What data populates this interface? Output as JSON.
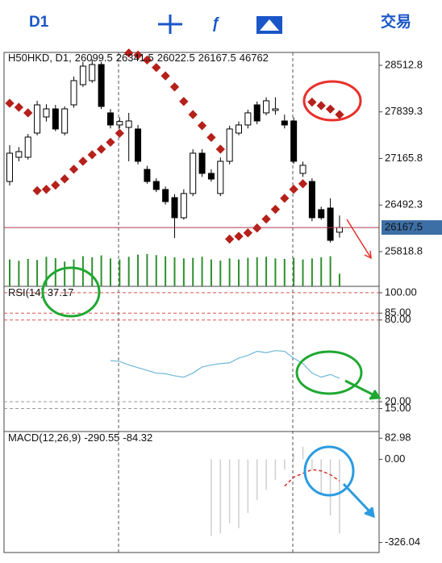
{
  "toolbar": {
    "timeframe": "D1",
    "trade": "交易"
  },
  "chart_data": [
    {
      "type": "candlestick",
      "title": "H50HKD, D1,",
      "open": [
        26833,
        27183,
        27183,
        27533,
        27766,
        27883,
        27533,
        27941,
        28233,
        28291,
        28524,
        27825,
        27650,
        27615,
        27592,
        27008,
        26833,
        26717,
        26600,
        26309,
        26659,
        27242,
        26950,
        26659,
        27125,
        27533,
        27650,
        27941,
        27825,
        27860,
        27708,
        27708,
        26950,
        26833,
        26426,
        26449,
        26099.5
      ],
      "high": [
        27358,
        27330,
        27520,
        28000,
        27950,
        27940,
        27920,
        28350,
        28560,
        28600,
        28560,
        27880,
        27760,
        27825,
        27650,
        27060,
        26880,
        26760,
        26650,
        26720,
        27300,
        27300,
        27010,
        27180,
        27640,
        27700,
        27870,
        27990,
        28050,
        28050,
        27800,
        27760,
        27120,
        26880,
        26470,
        26590,
        26341.5
      ],
      "low": [
        26775,
        27125,
        27150,
        27500,
        27700,
        27560,
        27500,
        27900,
        28200,
        28260,
        27880,
        27600,
        27600,
        27125,
        27080,
        26800,
        26680,
        26500,
        26017,
        26280,
        26620,
        26900,
        26830,
        26620,
        27080,
        27500,
        27600,
        27660,
        27790,
        27800,
        27600,
        27090,
        26900,
        26260,
        26280,
        25950,
        26022.5
      ],
      "close": [
        27242,
        27265,
        27475,
        27941,
        27883,
        27592,
        27883,
        28291,
        28501,
        28524,
        27918,
        27650,
        27700,
        27708,
        27125,
        26833,
        26717,
        26542,
        26309,
        26659,
        27242,
        26950,
        26868,
        27125,
        27592,
        27650,
        27825,
        27708,
        28000,
        27883,
        27650,
        27125,
        27067,
        26309,
        26309,
        25982,
        26167.5
      ],
      "volume": [
        100000,
        95000,
        102000,
        98000,
        110000,
        105000,
        92000,
        100000,
        112000,
        108000,
        115000,
        104000,
        100000,
        110000,
        118000,
        120000,
        116000,
        112000,
        108000,
        104000,
        106000,
        110000,
        100000,
        96000,
        104000,
        100000,
        106000,
        108000,
        110000,
        104000,
        102000,
        106000,
        100000,
        104000,
        108000,
        112000,
        46762
      ],
      "sar": [
        27964,
        27906,
        27825,
        26700,
        26720,
        26780,
        26870,
        27010,
        27125,
        27220,
        27300,
        27400,
        27530,
        28690,
        28660,
        28590,
        28480,
        28360,
        28200,
        27990,
        27800,
        27640,
        27470,
        27300,
        26000,
        26040,
        26090,
        26160,
        26290,
        26430,
        26590,
        26720,
        26800,
        27980,
        27930,
        27880,
        27800
      ],
      "ylim": [
        25317,
        28699
      ],
      "yticks": [
        28512.8,
        27839.3,
        27165.8,
        26492.3,
        25818.8
      ],
      "volume_lim": [
        0,
        150000
      ],
      "up_color": "#ffffff",
      "down_color": "#000000",
      "sar_color": "#b5201a",
      "volume_color": "#2f8f2f",
      "price_line_color": "#b03a48",
      "price_box_color": "#3c6fa6"
    },
    {
      "type": "line",
      "title": "RSI(14)",
      "series": [
        {
          "color": "#6fb8d6",
          "values": [
            null,
            null,
            null,
            null,
            null,
            null,
            null,
            null,
            null,
            null,
            null,
            50.2,
            49.5,
            47,
            45,
            43,
            41,
            40.5,
            39,
            38,
            41,
            45.5,
            47,
            48,
            48.5,
            52,
            54,
            57,
            56,
            57.5,
            57,
            52,
            48,
            41,
            38,
            40,
            37.17
          ]
        }
      ],
      "ylim": [
        -1.9,
        104.7
      ],
      "yticks": [
        {
          "value": 100,
          "label": "100.00"
        },
        {
          "value": 85,
          "label": "85.00"
        },
        {
          "value": 80,
          "label": "80.00"
        },
        {
          "value": 20,
          "label": "20.00"
        },
        {
          "value": 15,
          "label": "15.00"
        }
      ],
      "grid": true
    },
    {
      "type": "bar",
      "title": "MACD(12,26,9)",
      "values": [
        null,
        null,
        null,
        null,
        null,
        null,
        null,
        null,
        null,
        null,
        null,
        null,
        null,
        null,
        null,
        null,
        null,
        null,
        null,
        null,
        null,
        null,
        -300,
        -290,
        -250,
        -270,
        -210,
        -160,
        -120,
        -80,
        -40,
        20,
        50,
        -40,
        -140,
        -220,
        -290.55
      ],
      "signal": [
        null,
        null,
        null,
        null,
        null,
        null,
        null,
        null,
        null,
        null,
        null,
        null,
        null,
        null,
        null,
        null,
        null,
        null,
        null,
        null,
        null,
        null,
        null,
        null,
        null,
        null,
        null,
        null,
        null,
        null,
        -105,
        -70,
        -55,
        -40,
        -45,
        -60,
        -84.32
      ],
      "color": "#cfcfcf",
      "signal_color": "#d6332a",
      "ylim": [
        -365.3,
        109.2
      ],
      "yticks": [
        82.98,
        {
          "value": 0,
          "label": "0.00"
        },
        -326.04
      ]
    }
  ]
}
